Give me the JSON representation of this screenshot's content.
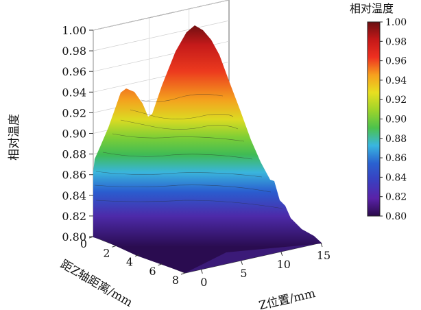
{
  "chart_data": {
    "type": "surface3d",
    "zlabel": "相对温度",
    "xlabel": "距Z轴距离/mm",
    "ylabel": "Z位置/mm",
    "zlim": [
      0.8,
      1.0
    ],
    "zticks": [
      "0.80",
      "0.82",
      "0.84",
      "0.86",
      "0.88",
      "0.90",
      "0.92",
      "0.94",
      "0.96",
      "0.98",
      "1.00"
    ],
    "xlim": [
      0,
      8
    ],
    "xticks": [
      "0",
      "2",
      "4",
      "6",
      "8"
    ],
    "ylim": [
      -2,
      15
    ],
    "yticks": [
      "0",
      "5",
      "10",
      "15"
    ],
    "grid": true,
    "colorbar": {
      "title": "相对温度",
      "ticks": [
        "0.80",
        "0.82",
        "0.84",
        "0.86",
        "0.88",
        "0.90",
        "0.92",
        "0.94",
        "0.96",
        "0.98",
        "1.00"
      ],
      "range": [
        0.8,
        1.0
      ],
      "colors": [
        "#2a0a4a",
        "#5a22a8",
        "#3a3fc0",
        "#2a62d0",
        "#39b6e0",
        "#4cc24c",
        "#9ed42a",
        "#e8df20",
        "#f7a01e",
        "#ee3020",
        "#c41818",
        "#6a0f12"
      ]
    },
    "peaks": [
      {
        "x": 8,
        "y": 0,
        "z": 0.945
      },
      {
        "x": 6,
        "y": 5,
        "z": 1.0
      }
    ]
  }
}
